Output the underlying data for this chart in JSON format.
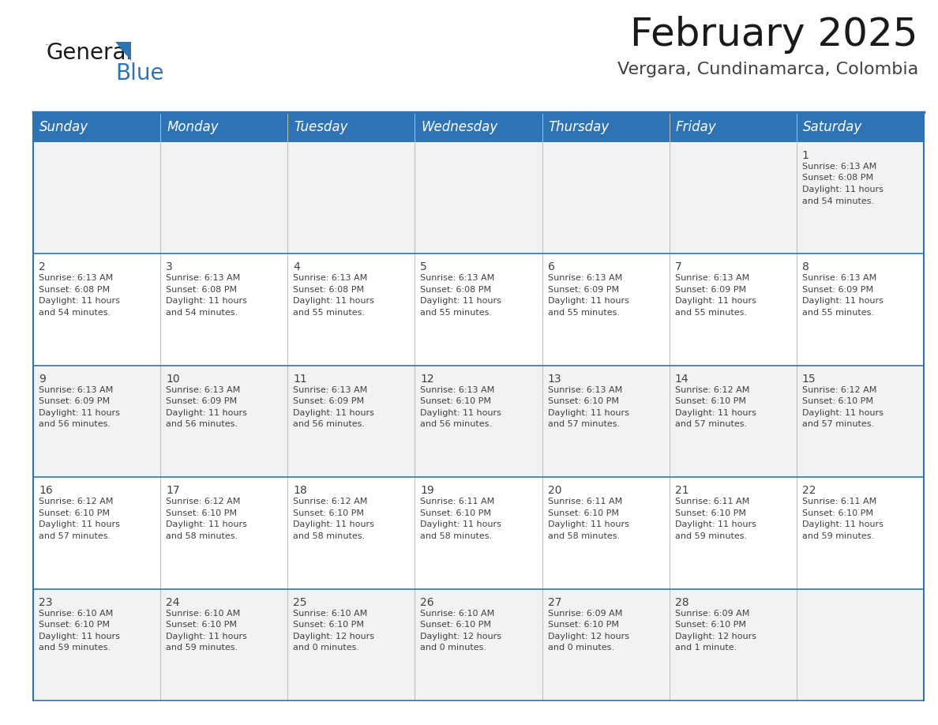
{
  "title": "February 2025",
  "subtitle": "Vergara, Cundinamarca, Colombia",
  "header_bg": "#2E74B5",
  "header_text_color": "#FFFFFF",
  "cell_bg_odd": "#F2F2F2",
  "cell_bg_even": "#FFFFFF",
  "border_color": "#2E74B5",
  "text_color": "#404040",
  "days_of_week": [
    "Sunday",
    "Monday",
    "Tuesday",
    "Wednesday",
    "Thursday",
    "Friday",
    "Saturday"
  ],
  "calendar_data": [
    [
      null,
      null,
      null,
      null,
      null,
      null,
      {
        "day": "1",
        "sunrise": "6:13 AM",
        "sunset": "6:08 PM",
        "daylight_h": "11 hours",
        "daylight_m": "and 54 minutes."
      }
    ],
    [
      {
        "day": "2",
        "sunrise": "6:13 AM",
        "sunset": "6:08 PM",
        "daylight_h": "11 hours",
        "daylight_m": "and 54 minutes."
      },
      {
        "day": "3",
        "sunrise": "6:13 AM",
        "sunset": "6:08 PM",
        "daylight_h": "11 hours",
        "daylight_m": "and 54 minutes."
      },
      {
        "day": "4",
        "sunrise": "6:13 AM",
        "sunset": "6:08 PM",
        "daylight_h": "11 hours",
        "daylight_m": "and 55 minutes."
      },
      {
        "day": "5",
        "sunrise": "6:13 AM",
        "sunset": "6:08 PM",
        "daylight_h": "11 hours",
        "daylight_m": "and 55 minutes."
      },
      {
        "day": "6",
        "sunrise": "6:13 AM",
        "sunset": "6:09 PM",
        "daylight_h": "11 hours",
        "daylight_m": "and 55 minutes."
      },
      {
        "day": "7",
        "sunrise": "6:13 AM",
        "sunset": "6:09 PM",
        "daylight_h": "11 hours",
        "daylight_m": "and 55 minutes."
      },
      {
        "day": "8",
        "sunrise": "6:13 AM",
        "sunset": "6:09 PM",
        "daylight_h": "11 hours",
        "daylight_m": "and 55 minutes."
      }
    ],
    [
      {
        "day": "9",
        "sunrise": "6:13 AM",
        "sunset": "6:09 PM",
        "daylight_h": "11 hours",
        "daylight_m": "and 56 minutes."
      },
      {
        "day": "10",
        "sunrise": "6:13 AM",
        "sunset": "6:09 PM",
        "daylight_h": "11 hours",
        "daylight_m": "and 56 minutes."
      },
      {
        "day": "11",
        "sunrise": "6:13 AM",
        "sunset": "6:09 PM",
        "daylight_h": "11 hours",
        "daylight_m": "and 56 minutes."
      },
      {
        "day": "12",
        "sunrise": "6:13 AM",
        "sunset": "6:10 PM",
        "daylight_h": "11 hours",
        "daylight_m": "and 56 minutes."
      },
      {
        "day": "13",
        "sunrise": "6:13 AM",
        "sunset": "6:10 PM",
        "daylight_h": "11 hours",
        "daylight_m": "and 57 minutes."
      },
      {
        "day": "14",
        "sunrise": "6:12 AM",
        "sunset": "6:10 PM",
        "daylight_h": "11 hours",
        "daylight_m": "and 57 minutes."
      },
      {
        "day": "15",
        "sunrise": "6:12 AM",
        "sunset": "6:10 PM",
        "daylight_h": "11 hours",
        "daylight_m": "and 57 minutes."
      }
    ],
    [
      {
        "day": "16",
        "sunrise": "6:12 AM",
        "sunset": "6:10 PM",
        "daylight_h": "11 hours",
        "daylight_m": "and 57 minutes."
      },
      {
        "day": "17",
        "sunrise": "6:12 AM",
        "sunset": "6:10 PM",
        "daylight_h": "11 hours",
        "daylight_m": "and 58 minutes."
      },
      {
        "day": "18",
        "sunrise": "6:12 AM",
        "sunset": "6:10 PM",
        "daylight_h": "11 hours",
        "daylight_m": "and 58 minutes."
      },
      {
        "day": "19",
        "sunrise": "6:11 AM",
        "sunset": "6:10 PM",
        "daylight_h": "11 hours",
        "daylight_m": "and 58 minutes."
      },
      {
        "day": "20",
        "sunrise": "6:11 AM",
        "sunset": "6:10 PM",
        "daylight_h": "11 hours",
        "daylight_m": "and 58 minutes."
      },
      {
        "day": "21",
        "sunrise": "6:11 AM",
        "sunset": "6:10 PM",
        "daylight_h": "11 hours",
        "daylight_m": "and 59 minutes."
      },
      {
        "day": "22",
        "sunrise": "6:11 AM",
        "sunset": "6:10 PM",
        "daylight_h": "11 hours",
        "daylight_m": "and 59 minutes."
      }
    ],
    [
      {
        "day": "23",
        "sunrise": "6:10 AM",
        "sunset": "6:10 PM",
        "daylight_h": "11 hours",
        "daylight_m": "and 59 minutes."
      },
      {
        "day": "24",
        "sunrise": "6:10 AM",
        "sunset": "6:10 PM",
        "daylight_h": "11 hours",
        "daylight_m": "and 59 minutes."
      },
      {
        "day": "25",
        "sunrise": "6:10 AM",
        "sunset": "6:10 PM",
        "daylight_h": "12 hours",
        "daylight_m": "and 0 minutes."
      },
      {
        "day": "26",
        "sunrise": "6:10 AM",
        "sunset": "6:10 PM",
        "daylight_h": "12 hours",
        "daylight_m": "and 0 minutes."
      },
      {
        "day": "27",
        "sunrise": "6:09 AM",
        "sunset": "6:10 PM",
        "daylight_h": "12 hours",
        "daylight_m": "and 0 minutes."
      },
      {
        "day": "28",
        "sunrise": "6:09 AM",
        "sunset": "6:10 PM",
        "daylight_h": "12 hours",
        "daylight_m": "and 1 minute."
      },
      null
    ]
  ],
  "logo_general_color": "#1a1a1a",
  "logo_blue_color": "#2E74B5",
  "logo_triangle_color": "#2E74B5",
  "title_fontsize": 36,
  "subtitle_fontsize": 16,
  "header_fontsize": 12,
  "day_num_fontsize": 10,
  "cell_text_fontsize": 8
}
